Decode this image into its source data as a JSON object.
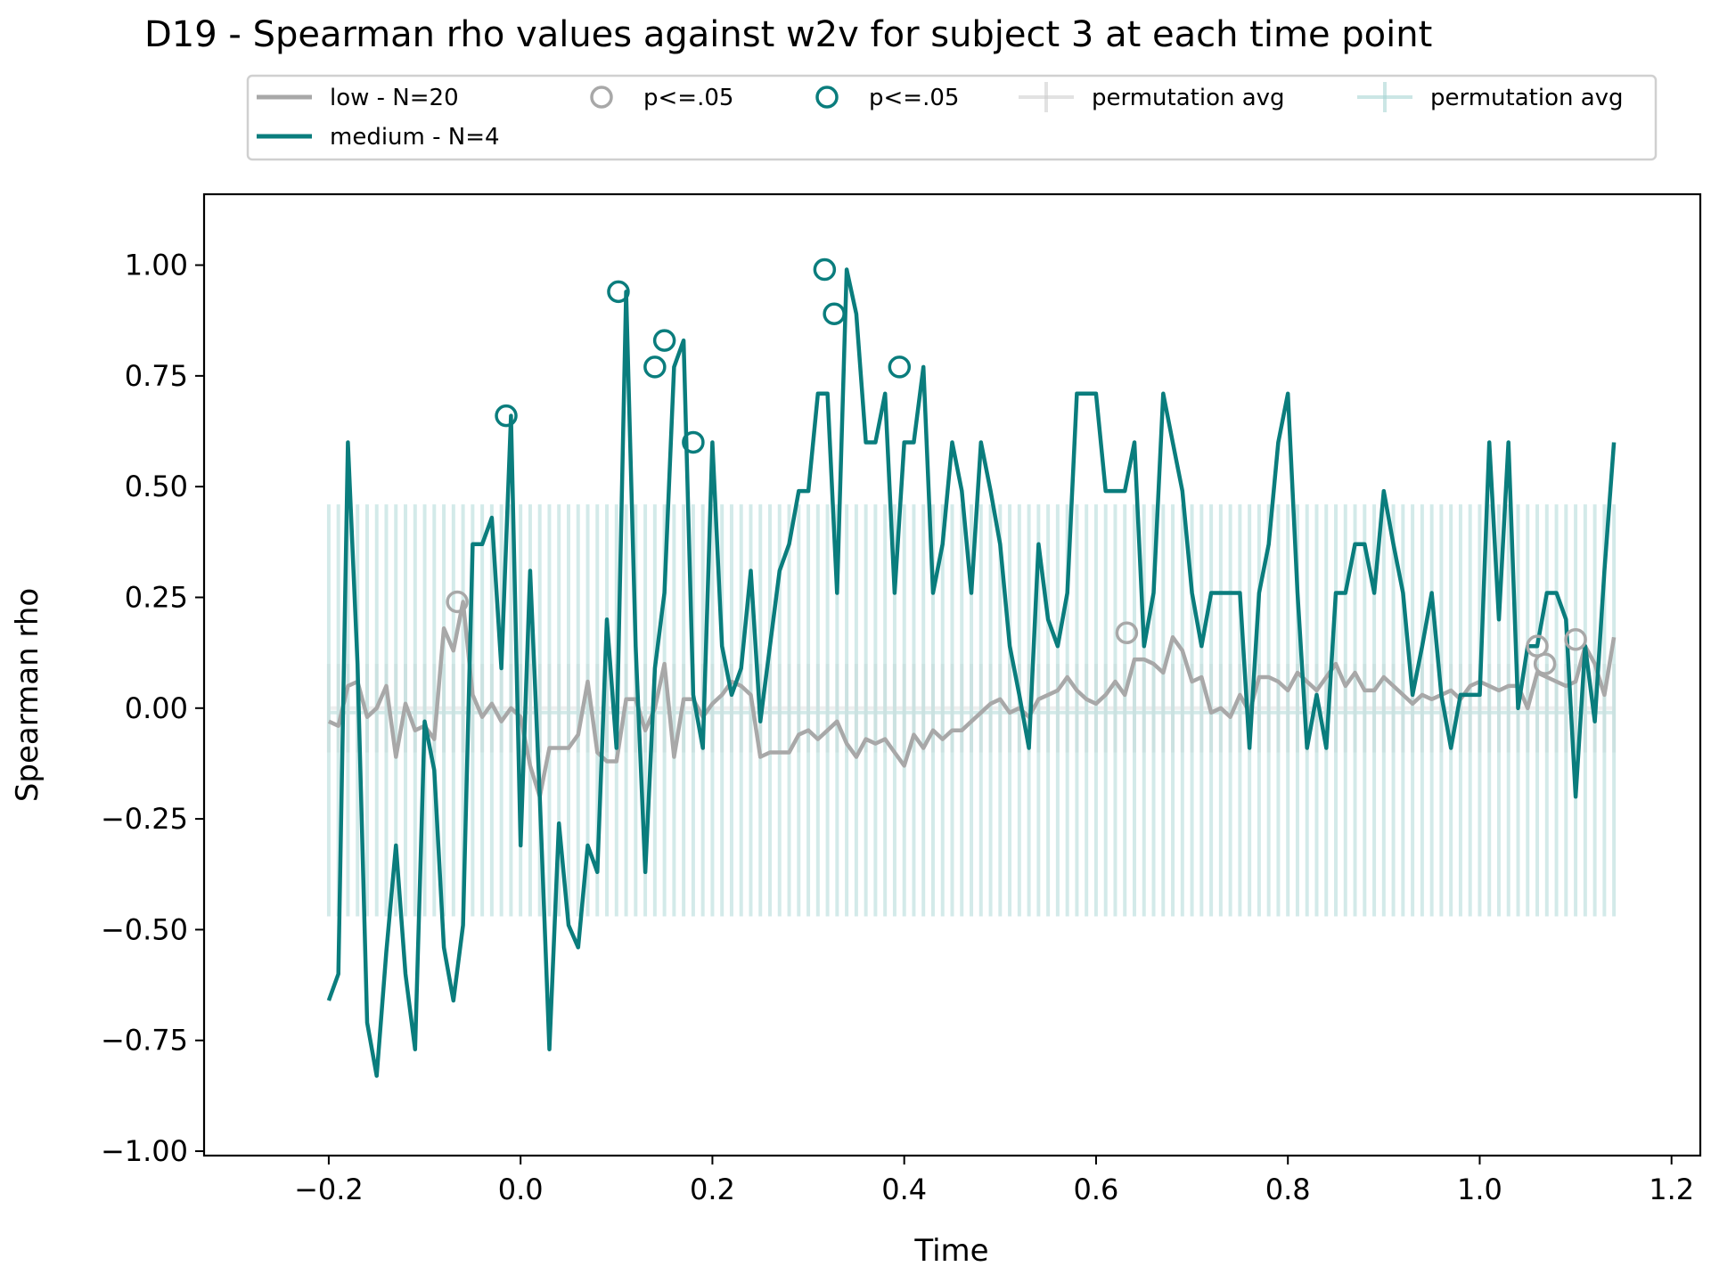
{
  "chart_data": {
    "type": "line",
    "title": "D19 - Spearman rho values against w2v for subject 3 at each time point",
    "xlabel": "Time",
    "ylabel": "Spearman rho",
    "xlim": [
      -0.33,
      1.23
    ],
    "ylim": [
      -1.01,
      1.16
    ],
    "xticks": [
      "−0.2",
      "0.0",
      "0.2",
      "0.4",
      "0.6",
      "0.8",
      "1.0",
      "1.2"
    ],
    "xtick_values": [
      -0.2,
      0.0,
      0.2,
      0.4,
      0.6,
      0.8,
      1.0,
      1.2
    ],
    "yticks": [
      "−1.00",
      "−0.75",
      "−0.50",
      "−0.25",
      "0.00",
      "0.25",
      "0.50",
      "0.75",
      "1.00"
    ],
    "ytick_values": [
      -1.0,
      -0.75,
      -0.5,
      -0.25,
      0.0,
      0.25,
      0.5,
      0.75,
      1.0
    ],
    "grid": false,
    "legend_position": "top-center, above plot",
    "colors": {
      "low": "#a8a8a8",
      "medium": "#0a7d7d",
      "perm_low": "#cfcfcf",
      "perm_medium": "#a9d7d5"
    },
    "legend": [
      {
        "label": "low - N=20",
        "kind": "line",
        "color": "#a8a8a8"
      },
      {
        "label": "medium - N=4",
        "kind": "line",
        "color": "#0a7d7d"
      },
      {
        "label": "p<=.05",
        "kind": "circle",
        "color": "#a8a8a8"
      },
      {
        "label": "p<=.05",
        "kind": "circle",
        "color": "#0a7d7d"
      },
      {
        "label": "permutation avg",
        "kind": "errorbar",
        "color": "#cfcfcf"
      },
      {
        "label": "permutation avg",
        "kind": "errorbar",
        "color": "#a9d7d5"
      }
    ],
    "time_start": -0.2,
    "time_step": 0.01,
    "series": [
      {
        "name": "low - N=20",
        "color": "#a8a8a8",
        "values": [
          -0.03,
          -0.04,
          0.05,
          0.06,
          -0.02,
          0.0,
          0.05,
          -0.11,
          0.01,
          -0.05,
          -0.04,
          -0.07,
          0.18,
          0.13,
          0.24,
          0.03,
          -0.02,
          0.01,
          -0.03,
          0.0,
          -0.02,
          -0.13,
          -0.2,
          -0.09,
          -0.09,
          -0.09,
          -0.06,
          0.06,
          -0.1,
          -0.12,
          -0.12,
          0.02,
          0.02,
          -0.05,
          0.0,
          0.1,
          -0.11,
          0.02,
          0.02,
          -0.02,
          0.01,
          0.03,
          0.06,
          0.05,
          0.03,
          -0.11,
          -0.1,
          -0.1,
          -0.1,
          -0.06,
          -0.05,
          -0.07,
          -0.05,
          -0.03,
          -0.08,
          -0.11,
          -0.07,
          -0.08,
          -0.07,
          -0.1,
          -0.13,
          -0.06,
          -0.09,
          -0.05,
          -0.07,
          -0.05,
          -0.05,
          -0.03,
          -0.01,
          0.01,
          0.02,
          -0.01,
          0.0,
          -0.02,
          0.02,
          0.03,
          0.04,
          0.07,
          0.04,
          0.02,
          0.01,
          0.03,
          0.06,
          0.03,
          0.11,
          0.11,
          0.1,
          0.08,
          0.16,
          0.13,
          0.06,
          0.07,
          -0.01,
          0.0,
          -0.02,
          0.03,
          -0.01,
          0.07,
          0.07,
          0.06,
          0.04,
          0.08,
          0.06,
          0.04,
          0.07,
          0.1,
          0.05,
          0.08,
          0.04,
          0.04,
          0.07,
          0.05,
          0.03,
          0.01,
          0.03,
          0.02,
          0.03,
          0.04,
          0.02,
          0.05,
          0.06,
          0.05,
          0.04,
          0.05,
          0.05,
          0.0,
          0.08,
          0.07,
          0.06,
          0.05,
          0.06,
          0.14,
          0.1,
          0.03,
          0.16
        ],
        "significant_x": [
          -0.066,
          0.632,
          1.06,
          1.068,
          1.1
        ],
        "significant_y": [
          0.24,
          0.17,
          0.14,
          0.1,
          0.155
        ]
      },
      {
        "name": "medium - N=4",
        "color": "#0a7d7d",
        "values": [
          -0.66,
          -0.6,
          0.6,
          0.1,
          -0.71,
          -0.83,
          -0.55,
          -0.31,
          -0.6,
          -0.77,
          -0.03,
          -0.14,
          -0.54,
          -0.66,
          -0.49,
          0.37,
          0.37,
          0.43,
          0.09,
          0.66,
          -0.31,
          0.31,
          -0.2,
          -0.77,
          -0.26,
          -0.49,
          -0.54,
          -0.31,
          -0.37,
          0.2,
          -0.09,
          0.94,
          0.14,
          -0.37,
          0.09,
          0.26,
          0.77,
          0.83,
          0.03,
          -0.09,
          0.6,
          0.14,
          0.03,
          0.09,
          0.31,
          -0.03,
          0.14,
          0.31,
          0.37,
          0.49,
          0.49,
          0.71,
          0.71,
          0.26,
          0.99,
          0.89,
          0.6,
          0.6,
          0.71,
          0.26,
          0.6,
          0.6,
          0.77,
          0.26,
          0.37,
          0.6,
          0.49,
          0.26,
          0.6,
          0.49,
          0.37,
          0.14,
          0.03,
          -0.09,
          0.37,
          0.2,
          0.14,
          0.26,
          0.71,
          0.71,
          0.71,
          0.49,
          0.49,
          0.49,
          0.6,
          0.14,
          0.26,
          0.71,
          0.6,
          0.49,
          0.26,
          0.14,
          0.26,
          0.26,
          0.26,
          0.26,
          -0.09,
          0.26,
          0.37,
          0.6,
          0.71,
          0.26,
          -0.09,
          0.03,
          -0.09,
          0.26,
          0.26,
          0.37,
          0.37,
          0.26,
          0.49,
          0.37,
          0.26,
          0.03,
          0.14,
          0.26,
          0.03,
          -0.09,
          0.03,
          0.03,
          0.03,
          0.6,
          0.2,
          0.6,
          0.0,
          0.14,
          0.14,
          0.26,
          0.26,
          0.2,
          -0.2,
          0.14,
          -0.03,
          0.31,
          0.6
        ],
        "significant_x": [
          -0.015,
          0.102,
          0.14,
          0.15,
          0.18,
          0.317,
          0.327,
          0.395
        ],
        "significant_y": [
          0.66,
          0.94,
          0.77,
          0.83,
          0.6,
          0.99,
          0.89,
          0.77
        ]
      }
    ],
    "permutation": [
      {
        "name": "permutation avg",
        "color": "#cfcfcf",
        "mean": 0.0,
        "lower": -0.1,
        "upper": 0.1
      },
      {
        "name": "permutation avg",
        "color": "#a9d7d5",
        "mean": -0.01,
        "lower": -0.47,
        "upper": 0.46
      }
    ]
  }
}
